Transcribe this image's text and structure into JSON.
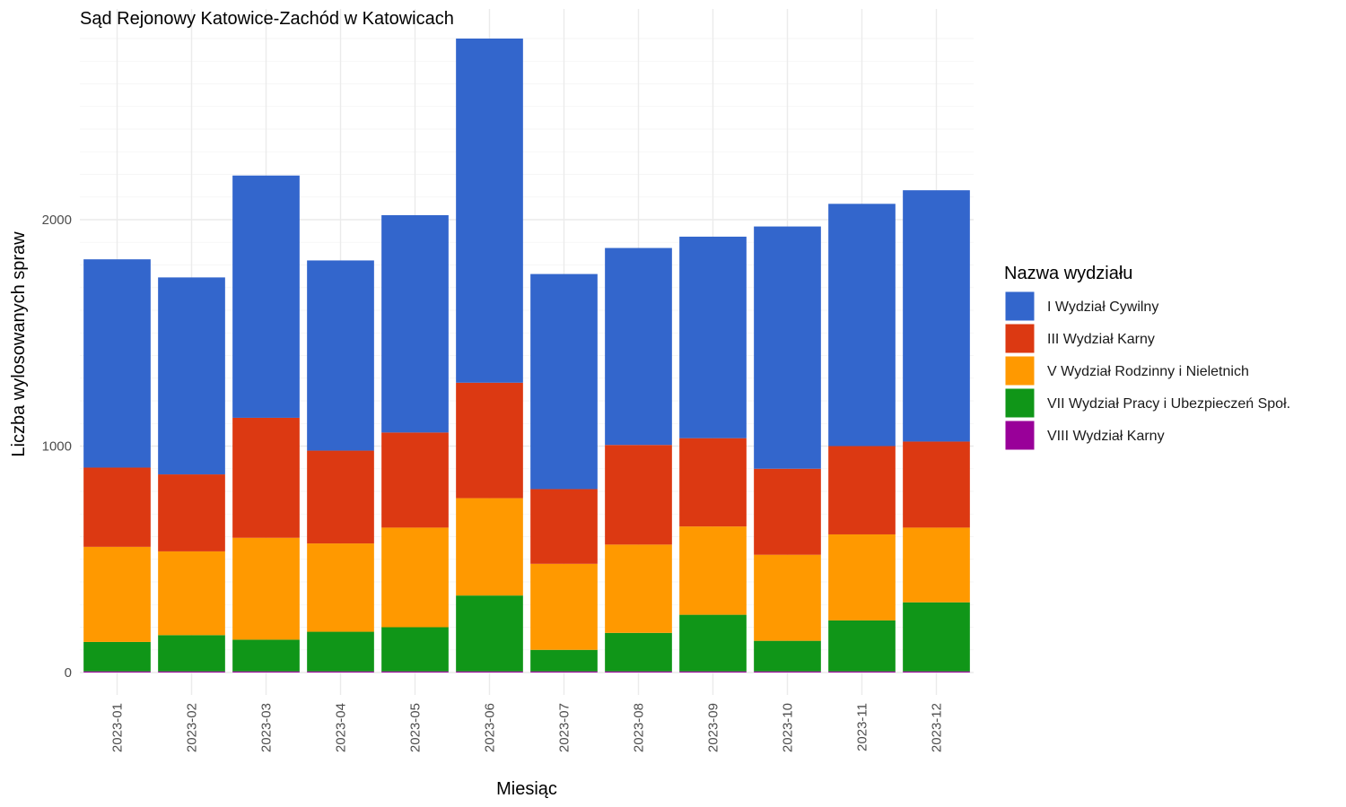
{
  "chart_data": {
    "type": "bar",
    "stacked": true,
    "title": "Sąd Rejonowy Katowice-Zachód w Katowicach",
    "xlabel": "Miesiąc",
    "ylabel": "Liczba wylosowanych spraw",
    "ylim": [
      0,
      2800
    ],
    "yticks": [
      0,
      1000,
      2000
    ],
    "grid": true,
    "legend_title": "Nazwa wydziału",
    "legend_position": "right",
    "categories": [
      "2023-01",
      "2023-02",
      "2023-03",
      "2023-04",
      "2023-05",
      "2023-06",
      "2023-07",
      "2023-08",
      "2023-09",
      "2023-10",
      "2023-11",
      "2023-12"
    ],
    "series": [
      {
        "name": "I Wydział Cywilny",
        "color": "#3366cc",
        "values": [
          920,
          870,
          1070,
          840,
          960,
          1520,
          950,
          870,
          890,
          1070,
          1070,
          1110
        ]
      },
      {
        "name": "III Wydział Karny",
        "color": "#dc3912",
        "values": [
          350,
          340,
          530,
          410,
          420,
          510,
          330,
          440,
          390,
          380,
          390,
          380
        ]
      },
      {
        "name": "V Wydział Rodzinny i Nieletnich",
        "color": "#ff9900",
        "values": [
          420,
          370,
          450,
          390,
          440,
          430,
          380,
          390,
          390,
          380,
          380,
          330
        ]
      },
      {
        "name": "VII Wydział Pracy i Ubezpieczeń Społ.",
        "color": "#109618",
        "values": [
          130,
          160,
          140,
          175,
          195,
          335,
          95,
          170,
          250,
          135,
          225,
          305
        ]
      },
      {
        "name": "VIII Wydział Karny",
        "color": "#990099",
        "values": [
          5,
          5,
          5,
          5,
          5,
          5,
          5,
          5,
          5,
          5,
          5,
          5
        ]
      }
    ]
  }
}
